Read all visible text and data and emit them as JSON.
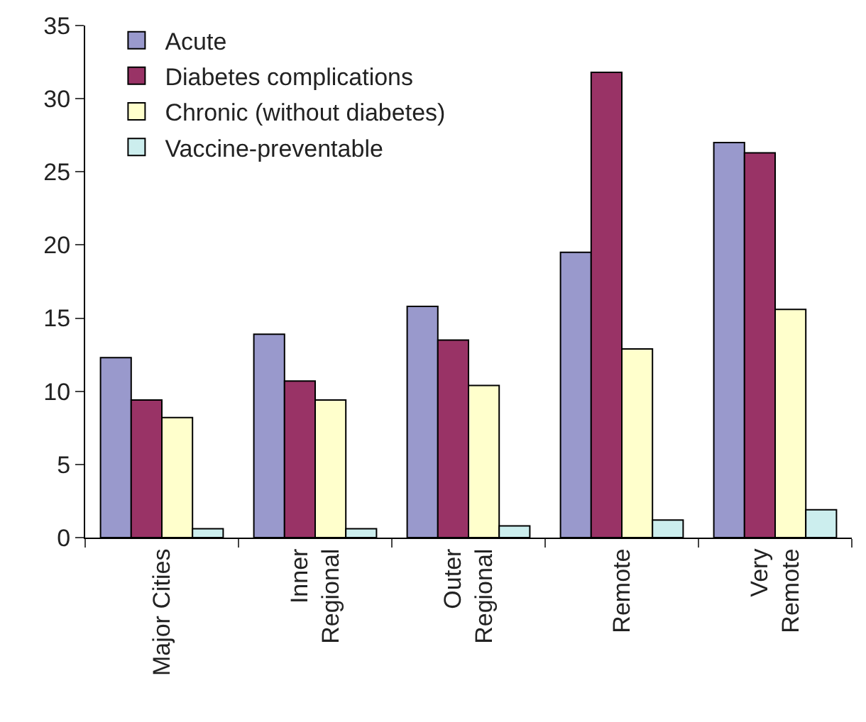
{
  "chart_data": {
    "type": "bar",
    "categories": [
      "Major Cities",
      "Inner\nRegional",
      "Outer\nRegional",
      "Remote",
      "Very\nRemote"
    ],
    "series": [
      {
        "name": "Acute",
        "color": "#9999cc",
        "values": [
          12.3,
          13.9,
          15.8,
          19.5,
          27.0
        ]
      },
      {
        "name": "Diabetes complications",
        "color": "#993366",
        "values": [
          9.4,
          10.7,
          13.5,
          31.8,
          26.3
        ]
      },
      {
        "name": "Chronic (without diabetes)",
        "color": "#ffffcc",
        "values": [
          8.2,
          9.4,
          10.4,
          12.9,
          15.6
        ]
      },
      {
        "name": "Vaccine-preventable",
        "color": "#cceeee",
        "values": [
          0.6,
          0.6,
          0.8,
          1.2,
          1.9
        ]
      }
    ],
    "ylim": [
      0,
      35
    ],
    "yticks": [
      0,
      5,
      10,
      15,
      20,
      25,
      30,
      35
    ],
    "grid": false,
    "legend": "top left"
  }
}
